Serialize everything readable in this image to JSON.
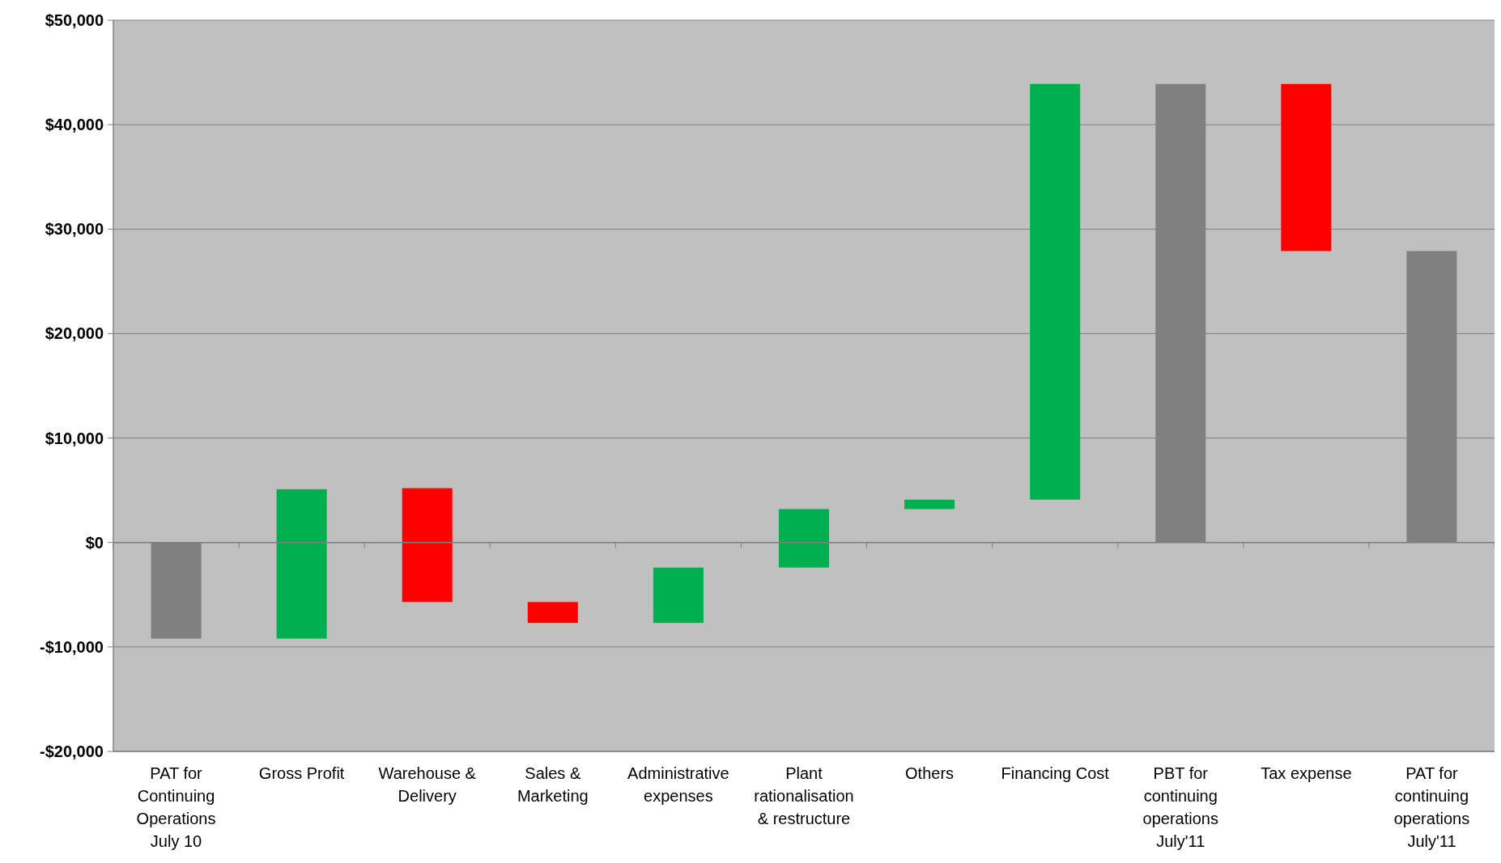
{
  "chart_data": {
    "type": "bar",
    "categories": [
      "PAT for Continuing Operations July 10",
      "Gross Profit",
      "Warehouse & Delivery",
      "Sales & Marketing",
      "Administrative expenses",
      "Plant rationalisation & restructure",
      "Others",
      "Financing Cost",
      "PBT for continuing operations July'11",
      "Tax expense",
      "PAT for continuing operations July'11"
    ],
    "values": [
      -9200,
      14300,
      -10900,
      -2000,
      5300,
      5600,
      900,
      39800,
      43900,
      -16000,
      27900
    ],
    "base": [
      0,
      -9200,
      5200,
      -5700,
      -7700,
      -2400,
      3200,
      4100,
      0,
      43900,
      0
    ],
    "colors": [
      "#808080",
      "#00b050",
      "#ff0000",
      "#ff0000",
      "#00b050",
      "#00b050",
      "#00b050",
      "#00b050",
      "#808080",
      "#ff0000",
      "#808080"
    ],
    "ylim": [
      -20000,
      50000
    ],
    "yticks": [
      {
        "value": -20000,
        "label": "-$20,000"
      },
      {
        "value": -10000,
        "label": "-$10,000"
      },
      {
        "value": 0,
        "label": "$0"
      },
      {
        "value": 10000,
        "label": "$10,000"
      },
      {
        "value": 20000,
        "label": "$20,000"
      },
      {
        "value": 30000,
        "label": "$30,000"
      },
      {
        "value": 40000,
        "label": "$40,000"
      },
      {
        "value": 50000,
        "label": "$50,000"
      }
    ],
    "grid": "y"
  }
}
